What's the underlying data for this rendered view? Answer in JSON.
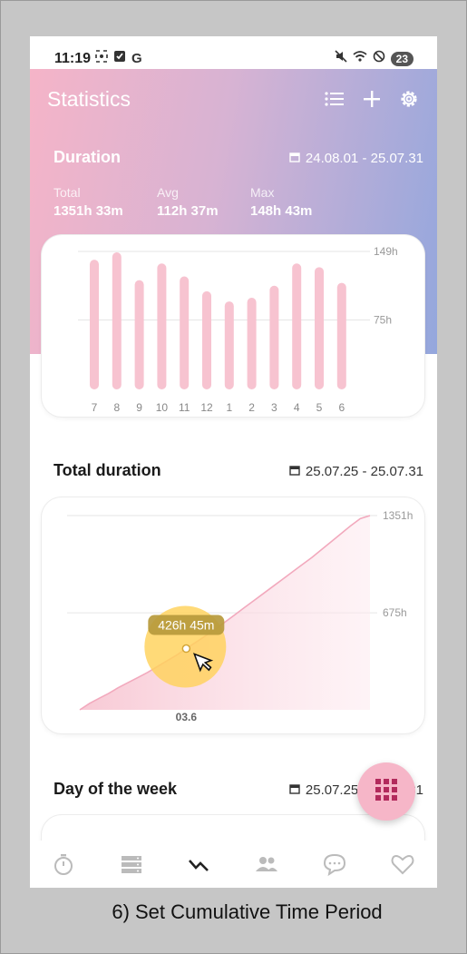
{
  "status_bar": {
    "time": "11:19",
    "battery": "23"
  },
  "header": {
    "title": "Statistics"
  },
  "duration": {
    "title": "Duration",
    "date_range": "24.08.01 - 25.07.31",
    "stats": [
      {
        "label": "Total",
        "value": "1351h 33m"
      },
      {
        "label": "Avg",
        "value": "112h 37m"
      },
      {
        "label": "Max",
        "value": "148h 43m"
      }
    ]
  },
  "total_duration": {
    "title": "Total duration",
    "date_range": "25.07.25 - 25.07.31"
  },
  "day_of_week": {
    "title": "Day of the week",
    "date_range": "25.07.25 - 25.07.31"
  },
  "caption": "6) Set Cumulative Time Period",
  "colors": {
    "accent_pink": "#f6b6c8",
    "bar_pink": "#f7c3d0",
    "highlight": "#ffd25a"
  },
  "chart_data": [
    {
      "type": "bar",
      "categories": [
        "7",
        "8",
        "9",
        "10",
        "11",
        "12",
        "1",
        "2",
        "3",
        "4",
        "5",
        "6"
      ],
      "values": [
        140,
        148,
        118,
        136,
        122,
        106,
        95,
        99,
        112,
        136,
        132,
        115
      ],
      "ytick_labels": [
        "149h",
        "75h"
      ],
      "yticks": [
        149,
        75
      ],
      "ylim": [
        0,
        149
      ]
    },
    {
      "type": "area",
      "x_label": "03.6",
      "tooltip": "426h 45m",
      "ytick_labels": [
        "1351h",
        "675h"
      ],
      "yticks": [
        1351,
        675
      ],
      "ylim": [
        0,
        1351
      ],
      "values": [
        0,
        45,
        80,
        115,
        155,
        190,
        225,
        260,
        300,
        340,
        380,
        426,
        470,
        515,
        560,
        610,
        660,
        710,
        760,
        810,
        860,
        910,
        960,
        1010,
        1060,
        1115,
        1170,
        1225,
        1280,
        1330,
        1351
      ]
    }
  ]
}
